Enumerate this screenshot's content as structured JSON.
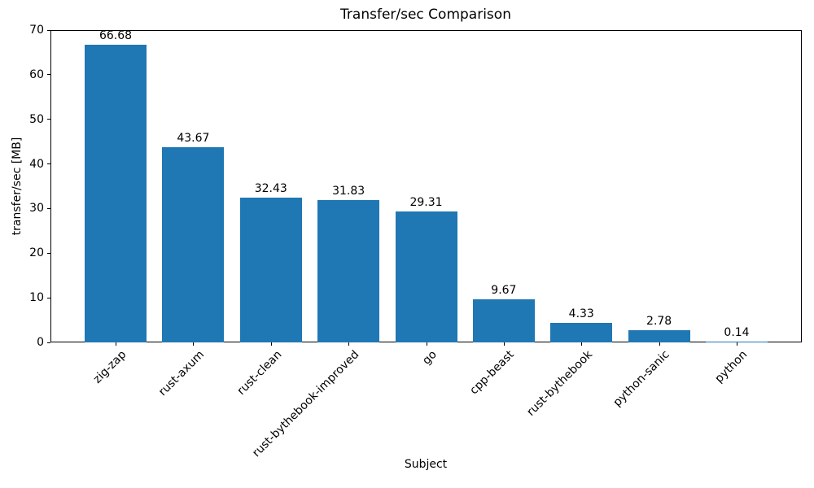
{
  "chart_data": {
    "type": "bar",
    "title": "Transfer/sec Comparison",
    "xlabel": "Subject",
    "ylabel": "transfer/sec [MB]",
    "categories": [
      "zig-zap",
      "rust-axum",
      "rust-clean",
      "rust-bythebook-improved",
      "go",
      "cpp-beast",
      "rust-bythebook",
      "python-sanic",
      "python"
    ],
    "values": [
      66.68,
      43.67,
      32.43,
      31.83,
      29.31,
      9.67,
      4.33,
      2.78,
      0.14
    ],
    "value_labels": [
      "66.68",
      "43.67",
      "32.43",
      "31.83",
      "29.31",
      "9.67",
      "4.33",
      "2.78",
      "0.14"
    ],
    "ylim": [
      0,
      70
    ],
    "yticks": [
      0,
      10,
      20,
      30,
      40,
      50,
      60,
      70
    ],
    "bar_color": "#1f77b4",
    "grid": false,
    "legend_position": "none"
  }
}
